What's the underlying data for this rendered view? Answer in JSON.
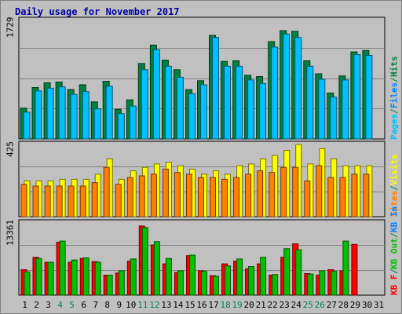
{
  "title": "Daily usage for November 2017",
  "colors": {
    "background": "#c0c0c0",
    "pages": "#00c0ff",
    "files": "#0080ff",
    "hits": "#008040",
    "visits": "#ffff00",
    "sites": "#ff8000",
    "kb_in": "#00c000",
    "kb_out": "#ff0000",
    "weekend": "#00805c"
  },
  "chart_data": [
    {
      "type": "bar",
      "panel": "hits-files-pages",
      "ymax_label": "1729",
      "ymax": 1729,
      "right_labels": [
        {
          "text": "Pages",
          "color": "#00c0ff"
        },
        {
          "text": " / ",
          "color": "#008040"
        },
        {
          "text": "Files",
          "color": "#0080ff"
        },
        {
          "text": " / ",
          "color": "#008040"
        },
        {
          "text": "Hits",
          "color": "#008040"
        }
      ],
      "categories": [
        "1",
        "2",
        "3",
        "4",
        "5",
        "6",
        "7",
        "8",
        "9",
        "10",
        "11",
        "12",
        "13",
        "14",
        "15",
        "16",
        "17",
        "18",
        "19",
        "20",
        "21",
        "22",
        "23",
        "24",
        "25",
        "26",
        "27",
        "28",
        "29",
        "30",
        "31"
      ],
      "series": [
        {
          "name": "Hits",
          "color": "#008040",
          "values": [
            450,
            750,
            820,
            830,
            720,
            790,
            540,
            840,
            430,
            570,
            1100,
            1370,
            1150,
            1010,
            720,
            850,
            1510,
            1130,
            1140,
            930,
            910,
            1420,
            1580,
            1570,
            1140,
            950,
            670,
            920,
            1270,
            1290,
            null
          ]
        },
        {
          "name": "Files",
          "color": "#0080ff",
          "values": [
            230,
            340,
            350,
            340,
            330,
            330,
            260,
            360,
            230,
            270,
            450,
            610,
            540,
            460,
            340,
            340,
            560,
            400,
            450,
            380,
            360,
            520,
            790,
            680,
            430,
            370,
            300,
            360,
            430,
            460,
            null
          ]
        },
        {
          "name": "Pages",
          "color": "#00c0ff",
          "values": [
            390,
            700,
            740,
            760,
            650,
            690,
            440,
            770,
            370,
            480,
            1010,
            1300,
            1060,
            900,
            660,
            790,
            1480,
            1060,
            1060,
            860,
            810,
            1340,
            1530,
            1480,
            1060,
            870,
            610,
            860,
            1230,
            1220,
            null
          ]
        }
      ]
    },
    {
      "type": "bar",
      "panel": "visits-sites",
      "ymax_label": "425",
      "ymax": 425,
      "right_labels": [
        {
          "text": "Sites",
          "color": "#ff8000"
        },
        {
          "text": " / ",
          "color": "#008040"
        },
        {
          "text": "Visits",
          "color": "#ffff00"
        }
      ],
      "categories": [
        "1",
        "2",
        "3",
        "4",
        "5",
        "6",
        "7",
        "8",
        "9",
        "10",
        "11",
        "12",
        "13",
        "14",
        "15",
        "16",
        "17",
        "18",
        "19",
        "20",
        "21",
        "22",
        "23",
        "24",
        "25",
        "26",
        "27",
        "28",
        "29",
        "30",
        "31"
      ],
      "series": [
        {
          "name": "Visits",
          "color": "#ffff00",
          "values": [
            210,
            210,
            210,
            220,
            220,
            220,
            250,
            340,
            220,
            270,
            290,
            310,
            320,
            300,
            280,
            250,
            270,
            250,
            300,
            310,
            340,
            360,
            390,
            425,
            310,
            400,
            340,
            300,
            300,
            300,
            null
          ]
        },
        {
          "name": "Sites",
          "color": "#ff8000",
          "values": [
            190,
            180,
            180,
            180,
            180,
            180,
            200,
            290,
            190,
            230,
            240,
            250,
            280,
            260,
            250,
            230,
            230,
            220,
            230,
            250,
            270,
            260,
            290,
            290,
            210,
            300,
            230,
            230,
            250,
            250,
            null
          ]
        }
      ]
    },
    {
      "type": "bar",
      "panel": "kbin-kbout",
      "ymax_label": "13361",
      "ymax": 13361,
      "right_labels": [
        {
          "text": "KB F",
          "color": "#ff0000"
        },
        {
          "text": " / ",
          "color": "#008040"
        },
        {
          "text": "KB Out",
          "color": "#00c000"
        },
        {
          "text": " / ",
          "color": "#008040"
        },
        {
          "text": "KB In",
          "color": "#0080ff"
        }
      ],
      "categories": [
        "1",
        "2",
        "3",
        "4",
        "5",
        "6",
        "7",
        "8",
        "9",
        "10",
        "11",
        "12",
        "13",
        "14",
        "15",
        "16",
        "17",
        "18",
        "19",
        "20",
        "21",
        "22",
        "23",
        "24",
        "25",
        "26",
        "27",
        "28",
        "29",
        "30",
        "31"
      ],
      "series": [
        {
          "name": "KB F",
          "color": "#ff0000",
          "values": [
            4700,
            7000,
            6100,
            9800,
            6100,
            6800,
            6200,
            3700,
            4100,
            6300,
            12800,
            9300,
            5800,
            4200,
            7300,
            4500,
            3600,
            5800,
            6300,
            4900,
            5800,
            3700,
            7000,
            9500,
            4000,
            3700,
            4700,
            4500,
            9400,
            null,
            null
          ]
        },
        {
          "name": "KB Out",
          "color": "#00c000",
          "values": [
            4300,
            6800,
            6100,
            10000,
            6500,
            6900,
            6100,
            3700,
            4500,
            6700,
            12500,
            9900,
            6800,
            4500,
            7400,
            4400,
            3500,
            5400,
            6700,
            5300,
            7000,
            3800,
            8600,
            8400,
            3900,
            4500,
            4400,
            10000,
            null,
            null,
            null
          ]
        }
      ]
    }
  ],
  "x_ticks": [
    {
      "label": "1",
      "weekend": false
    },
    {
      "label": "2",
      "weekend": false
    },
    {
      "label": "3",
      "weekend": false
    },
    {
      "label": "4",
      "weekend": true
    },
    {
      "label": "5",
      "weekend": true
    },
    {
      "label": "6",
      "weekend": false
    },
    {
      "label": "7",
      "weekend": false
    },
    {
      "label": "8",
      "weekend": false
    },
    {
      "label": "9",
      "weekend": false
    },
    {
      "label": "10",
      "weekend": false
    },
    {
      "label": "11",
      "weekend": true
    },
    {
      "label": "12",
      "weekend": true
    },
    {
      "label": "13",
      "weekend": false
    },
    {
      "label": "14",
      "weekend": false
    },
    {
      "label": "15",
      "weekend": false
    },
    {
      "label": "16",
      "weekend": false
    },
    {
      "label": "17",
      "weekend": false
    },
    {
      "label": "18",
      "weekend": true
    },
    {
      "label": "19",
      "weekend": true
    },
    {
      "label": "20",
      "weekend": false
    },
    {
      "label": "21",
      "weekend": false
    },
    {
      "label": "22",
      "weekend": false
    },
    {
      "label": "23",
      "weekend": false
    },
    {
      "label": "24",
      "weekend": false
    },
    {
      "label": "25",
      "weekend": true
    },
    {
      "label": "26",
      "weekend": true
    },
    {
      "label": "27",
      "weekend": false
    },
    {
      "label": "28",
      "weekend": false
    },
    {
      "label": "29",
      "weekend": false
    },
    {
      "label": "30",
      "weekend": false
    },
    {
      "label": "31",
      "weekend": false
    }
  ]
}
